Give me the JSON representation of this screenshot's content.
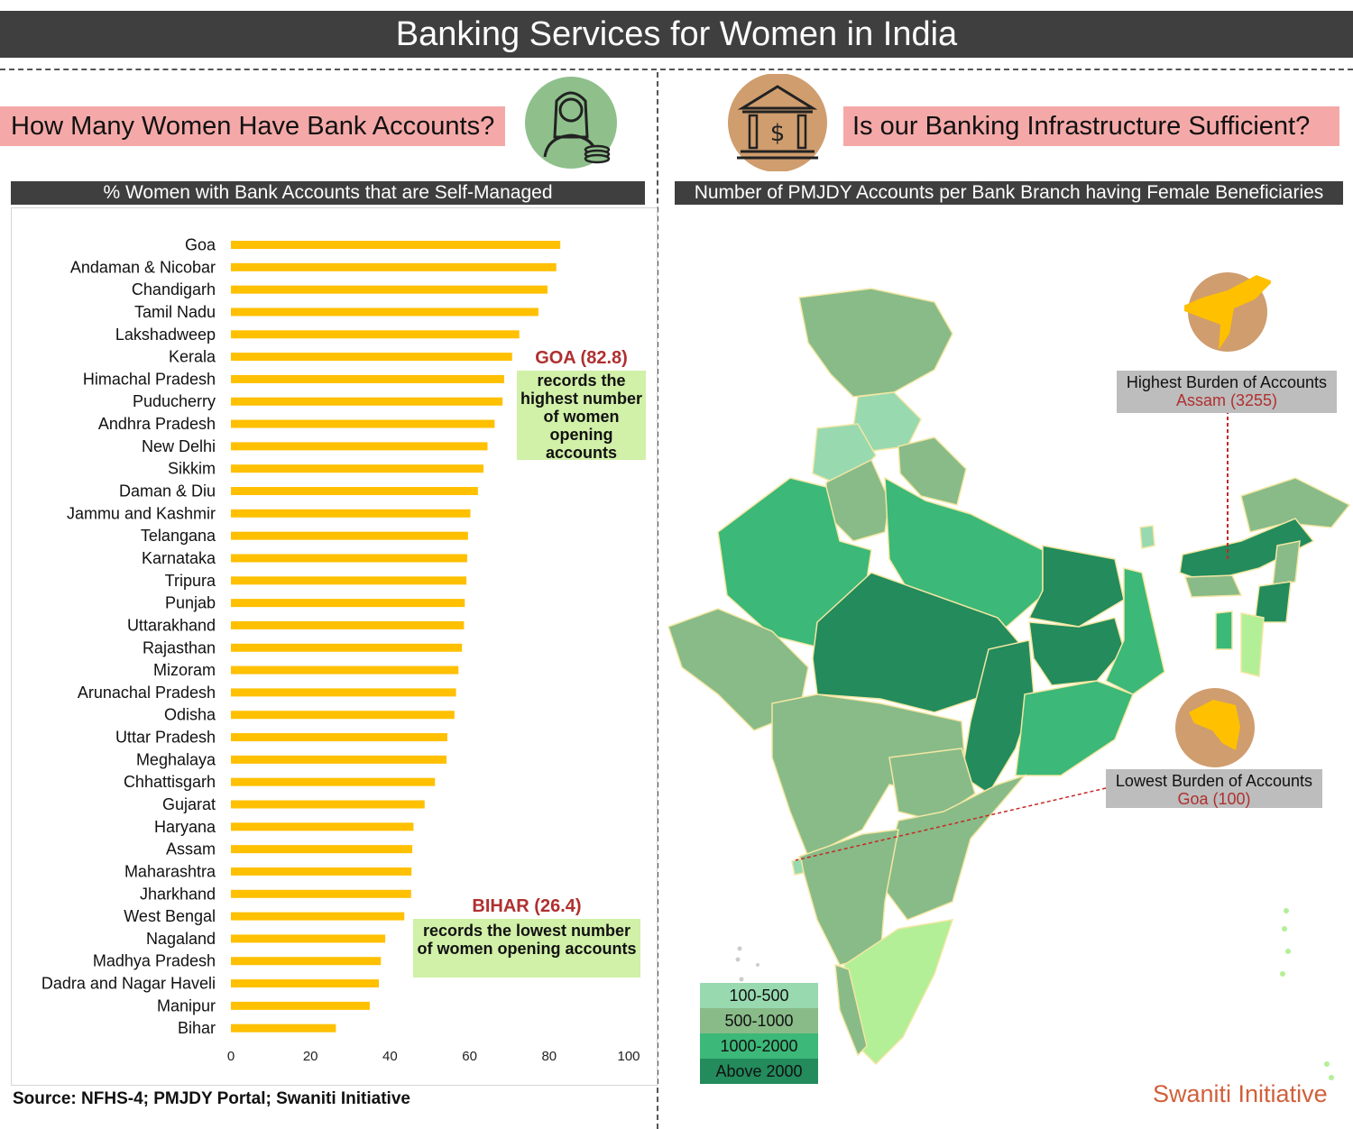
{
  "title": "Banking Services for Women in India",
  "left_panel": {
    "question": "How Many Women Have Bank Accounts?",
    "chart_title": "% Women with Bank Accounts that are Self-Managed",
    "icon": "woman-with-coins-icon"
  },
  "right_panel": {
    "question": "Is our Banking Infrastructure Sufficient?",
    "map_title": "Number of PMJDY Accounts per Bank Branch having Female Beneficiaries",
    "icon": "bank-building-icon"
  },
  "callouts": {
    "goa": {
      "title": "GOA (82.8)",
      "text": "records the highest number of women opening accounts"
    },
    "bihar": {
      "title": "BIHAR (26.4)",
      "text": "records the lowest number of women opening accounts"
    }
  },
  "map_labels": {
    "highest": {
      "label": "Highest Burden of Accounts",
      "value": "Assam (3255)"
    },
    "lowest": {
      "label": "Lowest Burden of Accounts",
      "value": "Goa (100)"
    }
  },
  "legend": [
    {
      "label": "100-500",
      "color": "#98d9b0"
    },
    {
      "label": "500-1000",
      "color": "#88bb88"
    },
    {
      "label": "1000-2000",
      "color": "#3cb878"
    },
    {
      "label": "Above 2000",
      "color": "#238b5c"
    }
  ],
  "source": "Source: NFHS-4; PMJDY Portal; Swaniti Initiative",
  "brand": "Swaniti Initiative",
  "colors": {
    "bar": "#ffc000",
    "header": "#3f3f3f",
    "question_bg": "#f4a9a8",
    "callout_bg": "#d1f0a8",
    "accent_red": "#b03030"
  },
  "chart_data": {
    "type": "bar",
    "orientation": "horizontal",
    "title": "% Women with Bank Accounts that are Self-Managed",
    "categories": [
      "Goa",
      "Andaman & Nicobar",
      "Chandigarh",
      "Tamil Nadu",
      "Lakshadweep",
      "Kerala",
      "Himachal Pradesh",
      "Puducherry",
      "Andhra Pradesh",
      "New Delhi",
      "Sikkim",
      "Daman & Diu",
      "Jammu and Kashmir",
      "Telangana",
      "Karnataka",
      "Tripura",
      "Punjab",
      "Uttarakhand",
      "Rajasthan",
      "Mizoram",
      "Arunachal Pradesh",
      "Odisha",
      "Uttar Pradesh",
      "Meghalaya",
      "Chhattisgarh",
      "Gujarat",
      "Haryana",
      "Assam",
      "Maharashtra",
      "Jharkhand",
      "West Bengal",
      "Nagaland",
      "Madhya Pradesh",
      "Dadra and Nagar Haveli",
      "Manipur",
      "Bihar"
    ],
    "values": [
      82.8,
      81.8,
      79.6,
      77.3,
      72.5,
      70.7,
      68.7,
      68.3,
      66.3,
      64.5,
      63.5,
      62.1,
      60.2,
      59.6,
      59.4,
      59.2,
      58.8,
      58.6,
      58.1,
      57.2,
      56.6,
      56.2,
      54.4,
      54.2,
      51.3,
      48.7,
      45.9,
      45.6,
      45.4,
      45.3,
      43.6,
      38.8,
      37.7,
      37.2,
      34.9,
      26.4
    ],
    "xticks": [
      "0",
      "20",
      "40",
      "60",
      "80",
      "100"
    ],
    "xlim": [
      0,
      100
    ],
    "grid": false
  }
}
